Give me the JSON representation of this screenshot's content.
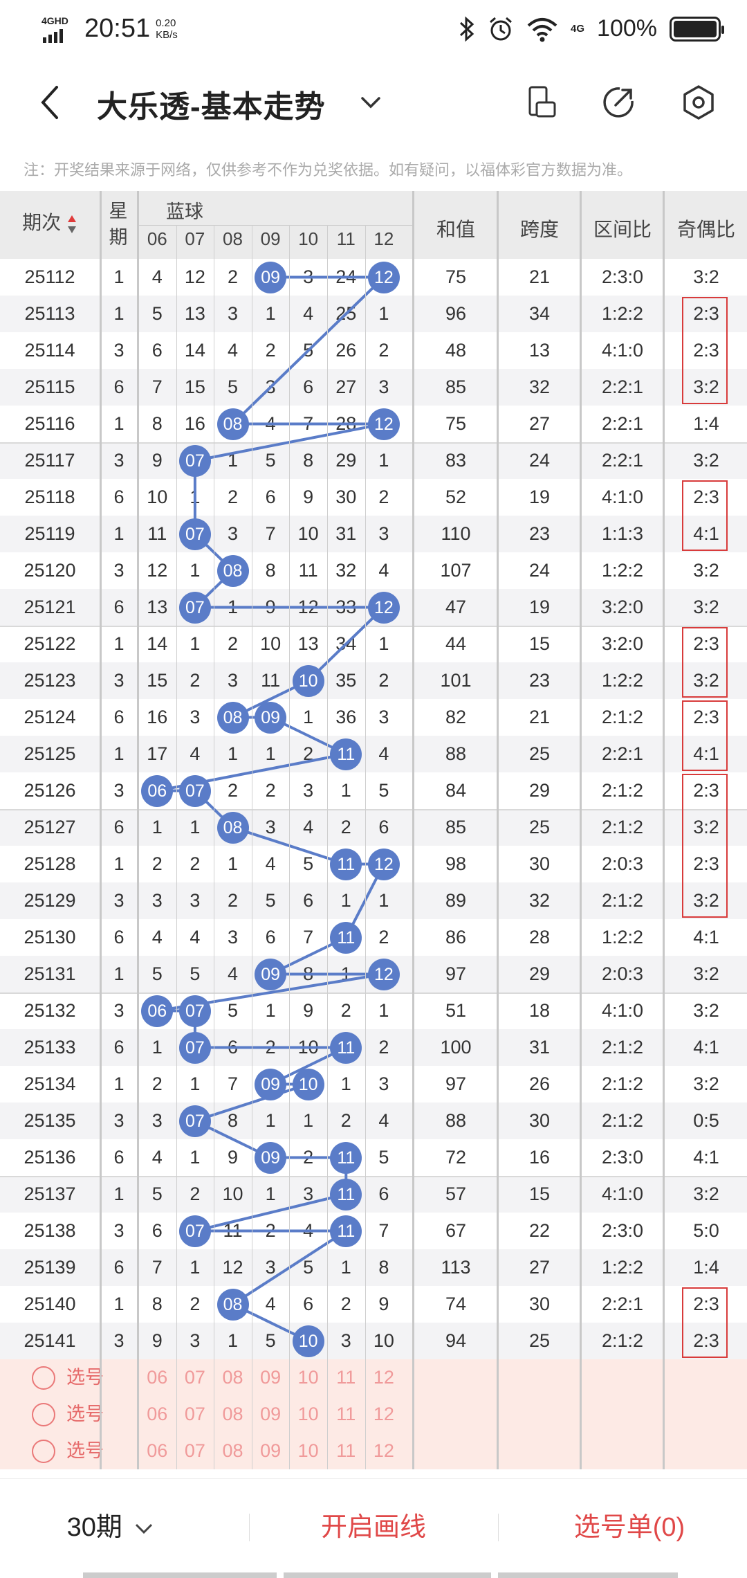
{
  "status_bar": {
    "network": "4GHD",
    "time": "20:51",
    "speed_value": "0.20",
    "speed_unit": "KB/s",
    "mobile_data": "4G",
    "battery": "100%"
  },
  "header": {
    "title": "大乐透-基本走势",
    "icons": [
      "back-icon",
      "chevron-down-icon",
      "screen-rotate-icon",
      "share-icon",
      "settings-icon"
    ]
  },
  "notice": "注：开奖结果来源于网络，仅供参考不作为兑奖依据。如有疑问，以福体彩官方数据为准。",
  "table": {
    "col_issue": "期次",
    "col_weekday": "星期",
    "col_blue": "蓝球",
    "blue_numbers": [
      "06",
      "07",
      "08",
      "09",
      "10",
      "11",
      "12"
    ],
    "col_sum": "和值",
    "col_span": "跨度",
    "col_zone": "区间比",
    "col_odd_even": "奇偶比",
    "ball_color": "#5a7cc8",
    "rows": [
      {
        "issue": "25112",
        "week": "1",
        "blue": [
          4,
          12,
          2,
          "09",
          3,
          24,
          "12"
        ],
        "sum": "75",
        "span": "21",
        "zone": "2:3:0",
        "oe": "3:2"
      },
      {
        "issue": "25113",
        "week": "1",
        "blue": [
          5,
          13,
          3,
          1,
          4,
          25,
          1
        ],
        "sum": "96",
        "span": "34",
        "zone": "1:2:2",
        "oe": "2:3"
      },
      {
        "issue": "25114",
        "week": "3",
        "blue": [
          6,
          14,
          4,
          2,
          5,
          26,
          2
        ],
        "sum": "48",
        "span": "13",
        "zone": "4:1:0",
        "oe": "2:3"
      },
      {
        "issue": "25115",
        "week": "6",
        "blue": [
          7,
          15,
          5,
          3,
          6,
          27,
          3
        ],
        "sum": "85",
        "span": "32",
        "zone": "2:2:1",
        "oe": "3:2"
      },
      {
        "issue": "25116",
        "week": "1",
        "blue": [
          8,
          16,
          "08",
          4,
          7,
          28,
          "12"
        ],
        "sum": "75",
        "span": "27",
        "zone": "2:2:1",
        "oe": "1:4"
      },
      {
        "issue": "25117",
        "week": "3",
        "blue": [
          9,
          "07",
          1,
          5,
          8,
          29,
          1
        ],
        "sum": "83",
        "span": "24",
        "zone": "2:2:1",
        "oe": "3:2"
      },
      {
        "issue": "25118",
        "week": "6",
        "blue": [
          10,
          1,
          2,
          6,
          9,
          30,
          2
        ],
        "sum": "52",
        "span": "19",
        "zone": "4:1:0",
        "oe": "2:3"
      },
      {
        "issue": "25119",
        "week": "1",
        "blue": [
          11,
          "07",
          3,
          7,
          10,
          31,
          3
        ],
        "sum": "110",
        "span": "23",
        "zone": "1:1:3",
        "oe": "4:1"
      },
      {
        "issue": "25120",
        "week": "3",
        "blue": [
          12,
          1,
          "08",
          8,
          11,
          32,
          4
        ],
        "sum": "107",
        "span": "24",
        "zone": "1:2:2",
        "oe": "3:2"
      },
      {
        "issue": "25121",
        "week": "6",
        "blue": [
          13,
          "07",
          1,
          9,
          12,
          33,
          "12"
        ],
        "sum": "47",
        "span": "19",
        "zone": "3:2:0",
        "oe": "3:2"
      },
      {
        "issue": "25122",
        "week": "1",
        "blue": [
          14,
          1,
          2,
          10,
          13,
          34,
          1
        ],
        "sum": "44",
        "span": "15",
        "zone": "3:2:0",
        "oe": "2:3"
      },
      {
        "issue": "25123",
        "week": "3",
        "blue": [
          15,
          2,
          3,
          11,
          "10",
          35,
          2
        ],
        "sum": "101",
        "span": "23",
        "zone": "1:2:2",
        "oe": "3:2"
      },
      {
        "issue": "25124",
        "week": "6",
        "blue": [
          16,
          3,
          "08",
          "09",
          1,
          36,
          3
        ],
        "sum": "82",
        "span": "21",
        "zone": "2:1:2",
        "oe": "2:3"
      },
      {
        "issue": "25125",
        "week": "1",
        "blue": [
          17,
          4,
          1,
          1,
          2,
          "11",
          4
        ],
        "sum": "88",
        "span": "25",
        "zone": "2:2:1",
        "oe": "4:1"
      },
      {
        "issue": "25126",
        "week": "3",
        "blue": [
          "06",
          "07",
          2,
          2,
          3,
          1,
          5
        ],
        "sum": "84",
        "span": "29",
        "zone": "2:1:2",
        "oe": "2:3"
      },
      {
        "issue": "25127",
        "week": "6",
        "blue": [
          1,
          1,
          "08",
          3,
          4,
          2,
          6
        ],
        "sum": "85",
        "span": "25",
        "zone": "2:1:2",
        "oe": "3:2"
      },
      {
        "issue": "25128",
        "week": "1",
        "blue": [
          2,
          2,
          1,
          4,
          5,
          "11",
          "12"
        ],
        "sum": "98",
        "span": "30",
        "zone": "2:0:3",
        "oe": "2:3"
      },
      {
        "issue": "25129",
        "week": "3",
        "blue": [
          3,
          3,
          2,
          5,
          6,
          1,
          1
        ],
        "sum": "89",
        "span": "32",
        "zone": "2:1:2",
        "oe": "3:2"
      },
      {
        "issue": "25130",
        "week": "6",
        "blue": [
          4,
          4,
          3,
          6,
          7,
          "11",
          2
        ],
        "sum": "86",
        "span": "28",
        "zone": "1:2:2",
        "oe": "4:1"
      },
      {
        "issue": "25131",
        "week": "1",
        "blue": [
          5,
          5,
          4,
          "09",
          8,
          1,
          "12"
        ],
        "sum": "97",
        "span": "29",
        "zone": "2:0:3",
        "oe": "3:2"
      },
      {
        "issue": "25132",
        "week": "3",
        "blue": [
          "06",
          "07",
          5,
          1,
          9,
          2,
          1
        ],
        "sum": "51",
        "span": "18",
        "zone": "4:1:0",
        "oe": "3:2"
      },
      {
        "issue": "25133",
        "week": "6",
        "blue": [
          1,
          "07",
          6,
          2,
          10,
          "11",
          2
        ],
        "sum": "100",
        "span": "31",
        "zone": "2:1:2",
        "oe": "4:1"
      },
      {
        "issue": "25134",
        "week": "1",
        "blue": [
          2,
          1,
          7,
          "09",
          "10",
          1,
          3
        ],
        "sum": "97",
        "span": "26",
        "zone": "2:1:2",
        "oe": "3:2"
      },
      {
        "issue": "25135",
        "week": "3",
        "blue": [
          3,
          "07",
          8,
          1,
          1,
          2,
          4
        ],
        "sum": "88",
        "span": "30",
        "zone": "2:1:2",
        "oe": "0:5"
      },
      {
        "issue": "25136",
        "week": "6",
        "blue": [
          4,
          1,
          9,
          "09",
          2,
          "11",
          5
        ],
        "sum": "72",
        "span": "16",
        "zone": "2:3:0",
        "oe": "4:1"
      },
      {
        "issue": "25137",
        "week": "1",
        "blue": [
          5,
          2,
          10,
          1,
          3,
          "11",
          6
        ],
        "sum": "57",
        "span": "15",
        "zone": "4:1:0",
        "oe": "3:2"
      },
      {
        "issue": "25138",
        "week": "3",
        "blue": [
          6,
          "07",
          11,
          2,
          4,
          "11",
          7
        ],
        "sum": "67",
        "span": "22",
        "zone": "2:3:0",
        "oe": "5:0"
      },
      {
        "issue": "25139",
        "week": "6",
        "blue": [
          7,
          1,
          12,
          3,
          5,
          1,
          8
        ],
        "sum": "113",
        "span": "27",
        "zone": "1:2:2",
        "oe": "1:4"
      },
      {
        "issue": "25140",
        "week": "1",
        "blue": [
          8,
          2,
          "08",
          4,
          6,
          2,
          9
        ],
        "sum": "74",
        "span": "30",
        "zone": "2:2:1",
        "oe": "2:3"
      },
      {
        "issue": "25141",
        "week": "3",
        "blue": [
          9,
          3,
          1,
          5,
          "10",
          3,
          10
        ],
        "sum": "94",
        "span": "25",
        "zone": "2:1:2",
        "oe": "2:3"
      }
    ],
    "pick_label": "选号",
    "pick_rows": 3
  },
  "bottom_bar": {
    "periods": "30期",
    "draw_line": "开启画线",
    "selection": "选号单(0)"
  }
}
